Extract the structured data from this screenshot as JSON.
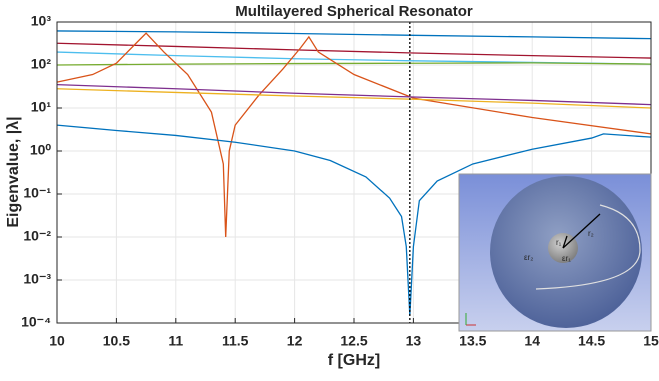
{
  "chart_data": {
    "type": "line",
    "title": "Multilayered Spherical Resonator",
    "x_label": "f [GHz]",
    "y_label": "Eigenvalue, |λ|",
    "log_y": true,
    "grid": true,
    "xlim": [
      10,
      15
    ],
    "xticks": [
      10,
      10.5,
      11,
      11.5,
      12,
      12.5,
      13,
      13.5,
      14,
      14.5,
      15
    ],
    "ylim": [
      0.0001,
      1000
    ],
    "yticks": [
      {
        "value": 0.0001,
        "label": "10⁻⁴"
      },
      {
        "value": 0.001,
        "label": "10⁻³"
      },
      {
        "value": 0.01,
        "label": "10⁻²"
      },
      {
        "value": 0.1,
        "label": "10⁻¹"
      },
      {
        "value": 1,
        "label": "10⁰"
      },
      {
        "value": 10,
        "label": "10¹"
      },
      {
        "value": 100,
        "label": "10²"
      },
      {
        "value": 1000,
        "label": "10³"
      }
    ],
    "vline": 12.97,
    "series": [
      {
        "color": "#0072BD",
        "x": [
          10,
          11,
          12,
          13,
          14,
          15
        ],
        "values": [
          620,
          590,
          540,
          490,
          450,
          410
        ]
      },
      {
        "color": "#A2142F",
        "x": [
          10,
          11,
          12,
          13,
          14,
          15
        ],
        "values": [
          320,
          270,
          225,
          190,
          165,
          145
        ]
      },
      {
        "color": "#4DBEEE",
        "x": [
          10,
          11,
          12,
          13,
          14,
          15
        ],
        "values": [
          200,
          165,
          140,
          125,
          115,
          105
        ]
      },
      {
        "color": "#77AC30",
        "x": [
          10,
          11,
          12,
          13,
          14,
          15
        ],
        "values": [
          100,
          105,
          108,
          110,
          112,
          105
        ]
      },
      {
        "color": "#D95319",
        "x": [
          10,
          10.3,
          10.5,
          10.7,
          10.75,
          10.9,
          11.1,
          11.3,
          11.4,
          11.42,
          11.45,
          11.5,
          11.7,
          11.9,
          12.05,
          12.12,
          12.2,
          12.5,
          13,
          14,
          15
        ],
        "values": [
          40,
          60,
          110,
          400,
          550,
          200,
          60,
          8,
          0.5,
          0.01,
          1,
          4,
          20,
          80,
          250,
          450,
          200,
          60,
          17,
          6,
          2.5
        ]
      },
      {
        "color": "#7E2F8E",
        "x": [
          10,
          11,
          12,
          13,
          14,
          15
        ],
        "values": [
          35,
          28,
          22,
          18,
          15,
          12
        ]
      },
      {
        "color": "#EDB120",
        "x": [
          10,
          11,
          12,
          13,
          14,
          15
        ],
        "values": [
          28,
          23,
          19,
          16,
          13,
          10
        ]
      },
      {
        "color": "#0072BD",
        "x": [
          10,
          10.5,
          11,
          11.5,
          12,
          12.3,
          12.6,
          12.8,
          12.9,
          12.94,
          12.97,
          13,
          13.05,
          13.2,
          13.5,
          14,
          14.5,
          14.6,
          15
        ],
        "values": [
          4,
          3,
          2.3,
          1.6,
          1,
          0.6,
          0.25,
          0.08,
          0.03,
          0.006,
          0.00015,
          0.006,
          0.07,
          0.2,
          0.5,
          1.1,
          2,
          2.5,
          2.1
        ]
      }
    ],
    "inset_labels": [
      "εr₂",
      "εr₁",
      "r₁",
      "r₂"
    ]
  }
}
